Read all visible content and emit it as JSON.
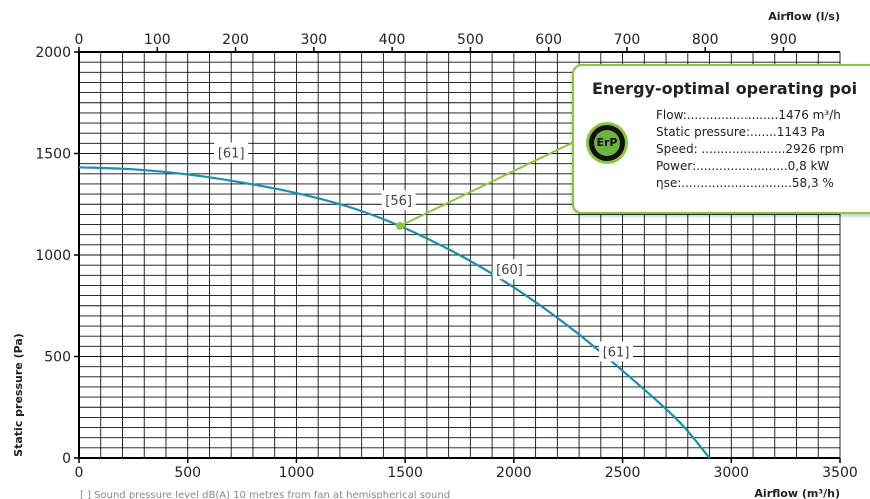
{
  "chart_data": {
    "type": "line",
    "xlabel": "Airflow (m³/h)",
    "ylabel": "Static pressure (Pa)",
    "x2label": "Airflow (l/s)",
    "xlim": [
      0,
      3500
    ],
    "ylim": [
      0,
      2000
    ],
    "x2lim": [
      0,
      972.2
    ],
    "grid": true,
    "x_ticks": [
      "0",
      "500",
      "1000",
      "1500",
      "2000",
      "2500",
      "3000",
      "3500"
    ],
    "y_ticks": [
      "0",
      "500",
      "1000",
      "1500",
      "2000"
    ],
    "x2_ticks": [
      "0",
      "100",
      "200",
      "300",
      "400",
      "500",
      "600",
      "700",
      "800",
      "900"
    ],
    "series": [
      {
        "color": "#1a8fb0",
        "x": [
          0,
          250,
          500,
          750,
          1000,
          1250,
          1476,
          1750,
          2000,
          2250,
          2500,
          2750,
          2900
        ],
        "y": [
          1432,
          1422,
          1397,
          1357,
          1305,
          1234,
          1143,
          1000,
          840,
          650,
          430,
          190,
          0
        ]
      }
    ],
    "sound_labels": [
      {
        "text": "[61]",
        "x": 700,
        "y": 1500
      },
      {
        "text": "[56]",
        "x": 1470,
        "y": 1265
      },
      {
        "text": "[60]",
        "x": 1980,
        "y": 925
      },
      {
        "text": "[61]",
        "x": 2470,
        "y": 520
      }
    ],
    "operating_point": {
      "x": 1476,
      "y": 1143,
      "color": "#8cc63f"
    },
    "footnote": "[ ] Sound pressure level dB(A) 10 metres from fan at hemispherical sound"
  },
  "erp": {
    "title": "Energy-optimal operating poi",
    "badge": "ErP",
    "rows": [
      "Flow:........................1476 m³/h",
      "Static pressure:.......1143 Pa",
      "Speed: ......................2926 rpm",
      "Power:........................0,8 kW",
      "ηse:.............................58,3 %"
    ]
  }
}
